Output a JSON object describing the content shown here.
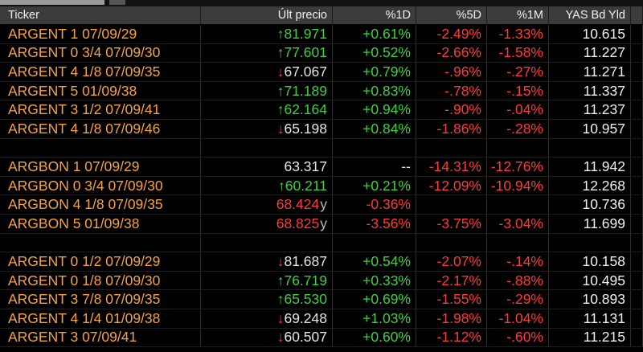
{
  "header": {
    "columns": [
      "Ticker",
      "Últ precio",
      "%1D",
      "%5D",
      "%1M",
      "YAS Bd Yld"
    ]
  },
  "colors": {
    "positive": "#3fd13f",
    "negative": "#ff3a3a",
    "neutral": "#e6e6e6",
    "ticker": "#f5a343",
    "yield": "#f0f0f0"
  },
  "groups": [
    [
      {
        "ticker": "ARGENT 1 07/09/29",
        "arrow": "↑",
        "arrow_color": "#3fd13f",
        "price": "81.971",
        "price_color": "#3fd13f",
        "d1": "+0.61%",
        "d5": "-2.49%",
        "m1": "-1.33%",
        "yld": "10.615"
      },
      {
        "ticker": "ARGENT 0 3/4 07/09/30",
        "arrow": "↑",
        "arrow_color": "#3fd13f",
        "price": "77.601",
        "price_color": "#3fd13f",
        "d1": "+0.52%",
        "d5": "-2.66%",
        "m1": "-1.58%",
        "yld": "11.227"
      },
      {
        "ticker": "ARGENT 4 1/8 07/09/35",
        "arrow": "↓",
        "arrow_color": "#ff3a3a",
        "price": "67.067",
        "price_color": "#e6e6e6",
        "d1": "+0.79%",
        "d5": "-.96%",
        "m1": "-.27%",
        "yld": "11.271"
      },
      {
        "ticker": "ARGENT 5 01/09/38",
        "arrow": "↑",
        "arrow_color": "#3fd13f",
        "price": "71.189",
        "price_color": "#3fd13f",
        "d1": "+0.83%",
        "d5": "-.78%",
        "m1": "-.15%",
        "yld": "11.337"
      },
      {
        "ticker": "ARGENT 3 1/2 07/09/41",
        "arrow": "↑",
        "arrow_color": "#3fd13f",
        "price": "62.164",
        "price_color": "#3fd13f",
        "d1": "+0.94%",
        "d5": "-.90%",
        "m1": "-.04%",
        "yld": "11.237"
      },
      {
        "ticker": "ARGENT 4 1/8 07/09/46",
        "arrow": "↓",
        "arrow_color": "#ff3a3a",
        "price": "65.198",
        "price_color": "#e6e6e6",
        "d1": "+0.84%",
        "d5": "-1.86%",
        "m1": "-.28%",
        "yld": "10.957"
      }
    ],
    [
      {
        "ticker": "ARGBON 1 07/09/29",
        "price": "63.317",
        "price_color": "#e6e6e6",
        "d1": "--",
        "d5": "-14.31%",
        "m1": "-12.76%",
        "yld": "11.942"
      },
      {
        "ticker": "ARGBON 0 3/4 07/09/30",
        "arrow": "↑",
        "arrow_color": "#3fd13f",
        "price": "60.211",
        "price_color": "#3fd13f",
        "d1": "+0.21%",
        "d5": "-12.09%",
        "m1": "-10.94%",
        "yld": "12.268"
      },
      {
        "ticker": "ARGBON 4 1/8 07/09/35",
        "price": "68.424",
        "price_color": "#ff3a3a",
        "suffix": "y",
        "d1": "-0.36%",
        "yld": "10.736"
      },
      {
        "ticker": "ARGBON 5 01/09/38",
        "price": "68.825",
        "price_color": "#ff3a3a",
        "suffix": "y",
        "d1": "-3.56%",
        "d5": "-3.75%",
        "m1": "-3.04%",
        "yld": "11.699"
      }
    ],
    [
      {
        "ticker": "ARGENT 0 1/2 07/09/29",
        "arrow": "↓",
        "arrow_color": "#ff3a3a",
        "price": "81.687",
        "price_color": "#e6e6e6",
        "d1": "+0.54%",
        "d5": "-2.07%",
        "m1": "-.14%",
        "yld": "10.158"
      },
      {
        "ticker": "ARGENT 0 1/8 07/09/30",
        "arrow": "↑",
        "arrow_color": "#3fd13f",
        "price": "76.719",
        "price_color": "#3fd13f",
        "d1": "+0.33%",
        "d5": "-2.17%",
        "m1": "-.88%",
        "yld": "10.495"
      },
      {
        "ticker": "ARGENT 3 7/8 07/09/35",
        "arrow": "↑",
        "arrow_color": "#3fd13f",
        "price": "65.530",
        "price_color": "#3fd13f",
        "d1": "+0.69%",
        "d5": "-1.55%",
        "m1": "-.29%",
        "yld": "10.893"
      },
      {
        "ticker": "ARGENT 4 1/4 01/09/38",
        "arrow": "↓",
        "arrow_color": "#ff3a3a",
        "price": "69.248",
        "price_color": "#e6e6e6",
        "d1": "+1.03%",
        "d5": "-1.98%",
        "m1": "-1.04%",
        "yld": "11.131"
      },
      {
        "ticker": "ARGENT 3 07/09/41",
        "arrow": "↓",
        "arrow_color": "#ff3a3a",
        "price": "60.507",
        "price_color": "#e6e6e6",
        "d1": "+0.60%",
        "d5": "-1.12%",
        "m1": "-.60%",
        "yld": "11.215"
      }
    ]
  ]
}
